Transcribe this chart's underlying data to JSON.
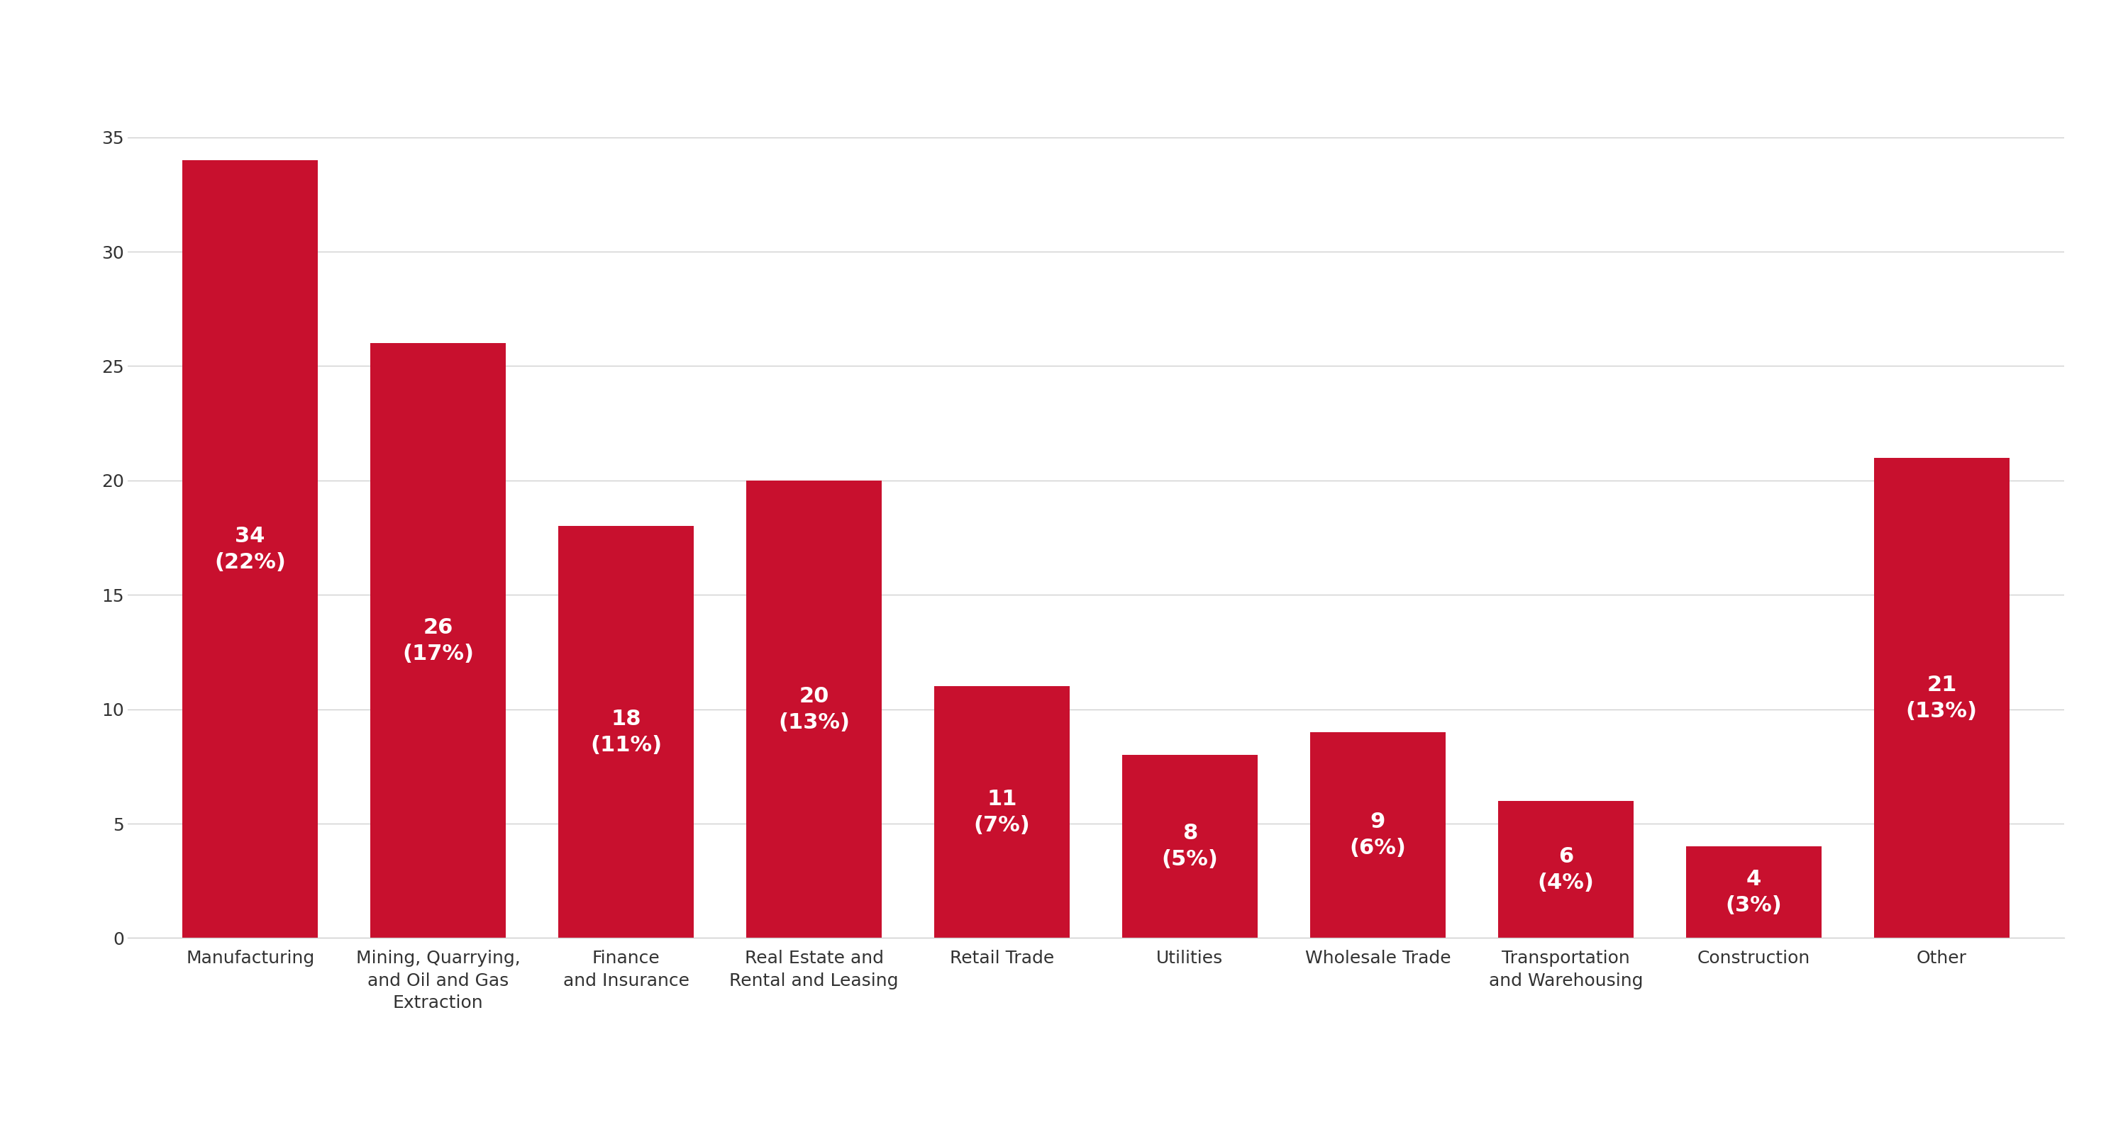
{
  "categories": [
    "Manufacturing",
    "Mining, Quarrying,\nand Oil and Gas\nExtraction",
    "Finance\nand Insurance",
    "Real Estate and\nRental and Leasing",
    "Retail Trade",
    "Utilities",
    "Wholesale Trade",
    "Transportation\nand Warehousing",
    "Construction",
    "Other"
  ],
  "values": [
    34,
    26,
    18,
    20,
    11,
    8,
    9,
    6,
    4,
    21
  ],
  "percentages": [
    "22%",
    "17%",
    "11%",
    "13%",
    "7%",
    "5%",
    "6%",
    "4%",
    "3%",
    "13%"
  ],
  "bar_color": "#c8102e",
  "background_color": "#ffffff",
  "text_color": "#ffffff",
  "label_fontsize": 22,
  "tick_fontsize": 18,
  "ylim": [
    0,
    37
  ],
  "yticks": [
    0,
    5,
    10,
    15,
    20,
    25,
    30,
    35
  ],
  "grid_color": "#cccccc",
  "spine_color": "#cccccc",
  "bar_width": 0.72
}
